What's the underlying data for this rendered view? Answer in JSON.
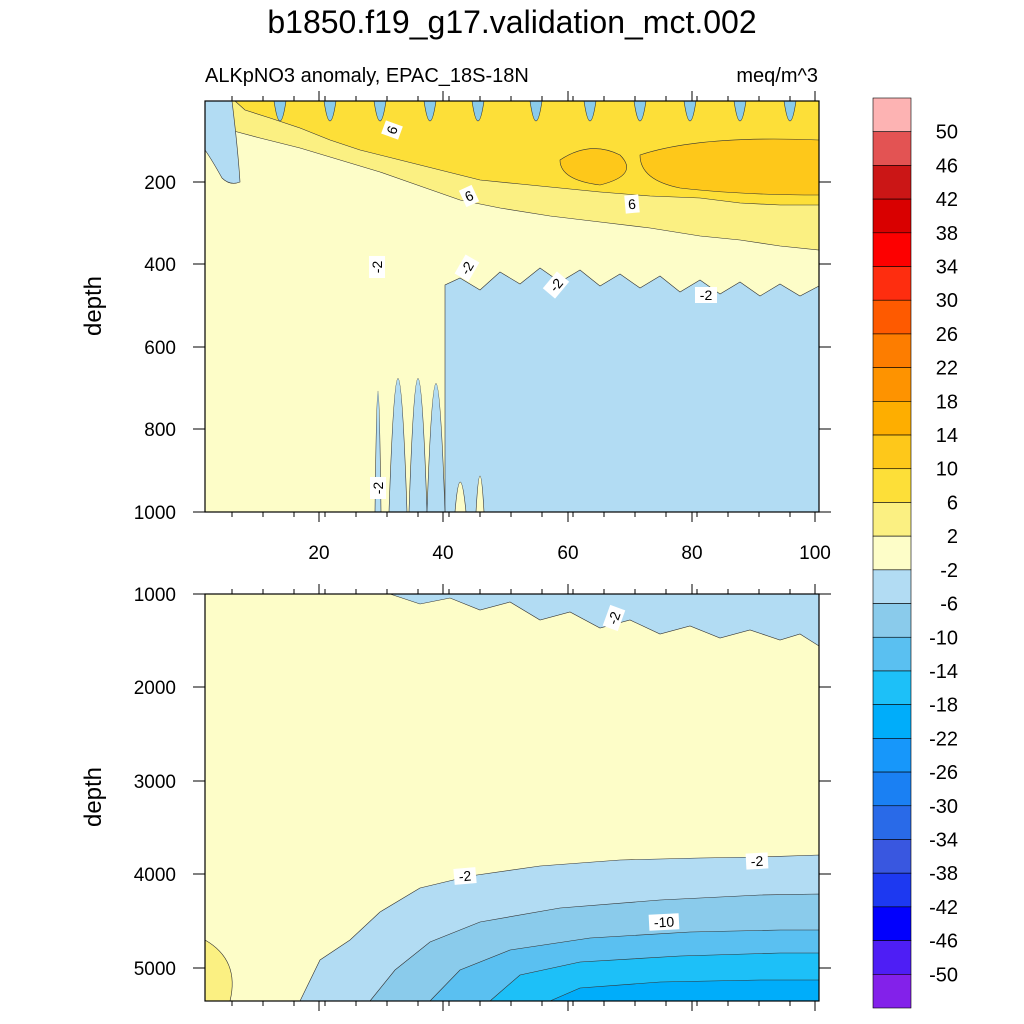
{
  "chart_data": {
    "type": "contour",
    "title": "b1850.f19_g17.validation_mct.002",
    "subtitle_left": "ALKpNO3 anomaly, EPAC_18S-18N",
    "subtitle_right": "meq/m^3",
    "colorbar": {
      "labels": [
        "50",
        "46",
        "42",
        "38",
        "34",
        "30",
        "26",
        "22",
        "18",
        "14",
        "10",
        "6",
        "2",
        "-2",
        "-6",
        "-10",
        "-14",
        "-18",
        "-22",
        "-26",
        "-30",
        "-34",
        "-38",
        "-42",
        "-46",
        "-50"
      ],
      "colors": [
        "#fdb3b3",
        "#e35353",
        "#cb1616",
        "#d90000",
        "#fd0000",
        "#fe2d0f",
        "#fe5a00",
        "#fd7d00",
        "#fe9300",
        "#feae00",
        "#fec81a",
        "#fddf38",
        "#fbf082",
        "#fdfdc8",
        "#b2dcf3",
        "#8acbeb",
        "#5ac0f1",
        "#1dc0f8",
        "#00adfa",
        "#1797fa",
        "#1a80f3",
        "#296ae8",
        "#3957e0",
        "#1d39f1",
        "#0200fd",
        "#4e1ef5",
        "#8321ea"
      ]
    },
    "panels": [
      {
        "name": "upper",
        "xlabel": "",
        "ylabel": "depth",
        "xlim": [
          1,
          101
        ],
        "ylim": [
          1000,
          0
        ],
        "xticks": [
          "20",
          "40",
          "60",
          "80",
          "100"
        ],
        "yticks": [
          "200",
          "400",
          "600",
          "800",
          "1000"
        ],
        "contour_labels": [
          "6",
          "6",
          "6",
          "-2",
          "-2",
          "-2",
          "-2",
          "-2"
        ]
      },
      {
        "name": "lower",
        "xlabel": "",
        "ylabel": "depth",
        "xlim": [
          1,
          101
        ],
        "ylim": [
          5400,
          1000
        ],
        "yticks": [
          "1000",
          "2000",
          "3000",
          "4000",
          "5000"
        ],
        "contour_labels": [
          "-2",
          "-2",
          "-2",
          "-10"
        ]
      }
    ]
  }
}
